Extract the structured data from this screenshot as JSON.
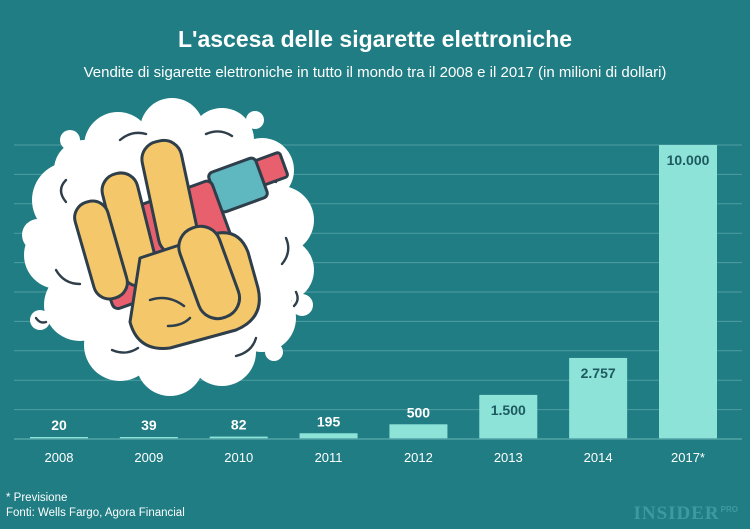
{
  "header": {
    "title": "L'ascesa delle sigarette elettroniche",
    "subtitle": "Vendite di sigarette elettroniche in tutto il mondo tra il 2008 e il 2017 (in milioni di dollari)"
  },
  "chart_data": {
    "type": "bar",
    "categories": [
      "2008",
      "2009",
      "2010",
      "2011",
      "2012",
      "2013",
      "2014",
      "2017*"
    ],
    "values": [
      20,
      39,
      82,
      195,
      500,
      1500,
      2757,
      10000
    ],
    "value_labels": [
      "20",
      "39",
      "82",
      "195",
      "500",
      "1.500",
      "2.757",
      "10.000"
    ],
    "ylim": [
      0,
      10000
    ],
    "grid": true,
    "bar_color": "#8ee3d9",
    "background_color": "#1f7d83"
  },
  "notes": {
    "forecast": "* Previsione",
    "sources": "Fonti: Wells Fargo, Agora Financial"
  },
  "brand": {
    "name": "INSIDER",
    "suffix": "PRO"
  },
  "illustration": {
    "icon": "hand-holding-vape-icon"
  }
}
